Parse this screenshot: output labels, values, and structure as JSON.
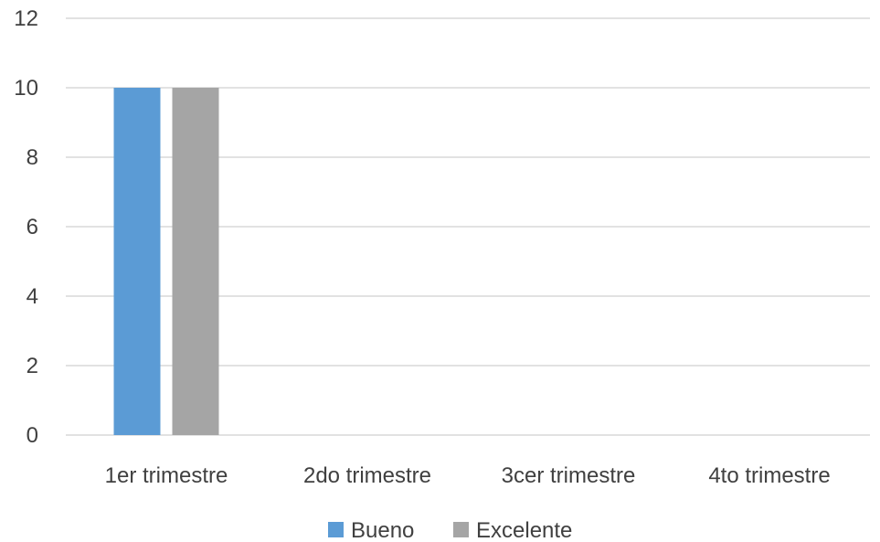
{
  "chart_data": {
    "type": "bar",
    "categories": [
      "1er trimestre",
      "2do trimestre",
      "3cer trimestre",
      "4to trimestre"
    ],
    "series": [
      {
        "name": "Bueno",
        "values": [
          10,
          0,
          0,
          0
        ],
        "color": "#5b9bd5"
      },
      {
        "name": "Excelente",
        "values": [
          10,
          0,
          0,
          0
        ],
        "color": "#a5a5a5"
      }
    ],
    "yticks": [
      0,
      2,
      4,
      6,
      8,
      10,
      12
    ],
    "ylim": [
      0,
      12
    ],
    "grid": true,
    "legend_position": "bottom",
    "title": "",
    "xlabel": "",
    "ylabel": ""
  }
}
